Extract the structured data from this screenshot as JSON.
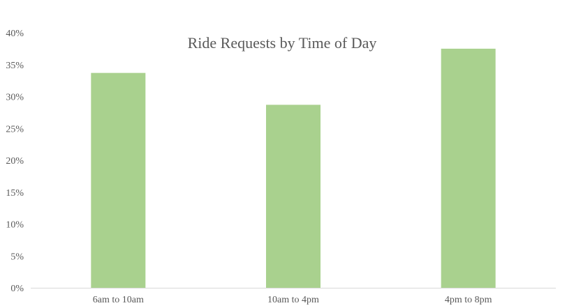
{
  "chart_data": {
    "type": "bar",
    "title": "Ride Requests by Time of Day",
    "xlabel": "",
    "ylabel": "",
    "categories": [
      "6am to 10am",
      "10am to 4pm",
      "4pm to 8pm"
    ],
    "values": [
      33.7,
      28.7,
      37.5
    ],
    "ylim": [
      0,
      40
    ],
    "yticks": [
      0,
      5,
      10,
      15,
      20,
      25,
      30,
      35,
      40
    ],
    "ytick_labels": [
      "0%",
      "5%",
      "10%",
      "15%",
      "20%",
      "25%",
      "30%",
      "35%",
      "40%"
    ],
    "grid": false,
    "legend": "none",
    "bar_color": "#a9d18e",
    "axis_color": "#d9d9d9",
    "text_color": "#595959"
  }
}
